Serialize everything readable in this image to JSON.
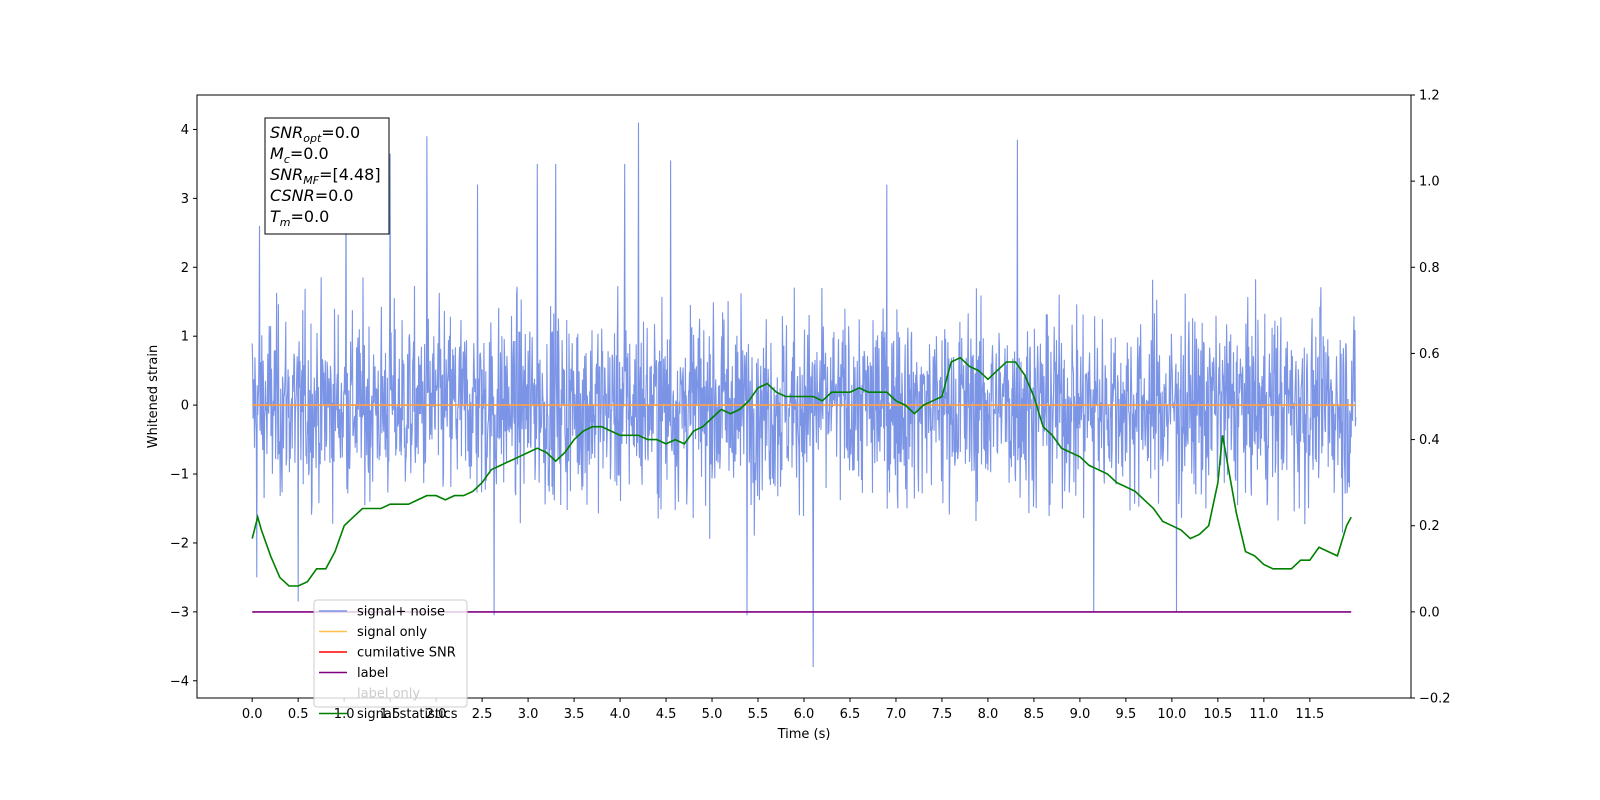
{
  "chart_data": {
    "type": "line",
    "xlabel": "Time (s)",
    "ylabel": "Whitened strain",
    "ylabel_right": "",
    "xlim": [
      -0.6,
      12.6
    ],
    "ylim": [
      -4.25,
      4.5
    ],
    "ylim_right": [
      -0.2,
      1.2
    ],
    "x_ticks": [
      0.0,
      0.5,
      1.0,
      1.5,
      2.0,
      2.5,
      3.0,
      3.5,
      4.0,
      4.5,
      5.0,
      5.5,
      6.0,
      6.5,
      7.0,
      7.5,
      8.0,
      8.5,
      9.0,
      9.5,
      10.0,
      10.5,
      11.0,
      11.5
    ],
    "x_tick_labels": [
      "0.0",
      "0.5",
      "1.0",
      "1.5",
      "2.0",
      "2.5",
      "3.0",
      "3.5",
      "4.0",
      "4.5",
      "5.0",
      "5.5",
      "6.0",
      "6.5",
      "7.0",
      "7.5",
      "8.0",
      "8.5",
      "9.0",
      "9.5",
      "10.0",
      "10.5",
      "11.0",
      "11.5"
    ],
    "y_ticks": [
      -4,
      -3,
      -2,
      -1,
      0,
      1,
      2,
      3,
      4
    ],
    "y_tick_labels": [
      "−4",
      "−3",
      "−2",
      "−1",
      "0",
      "1",
      "2",
      "3",
      "4"
    ],
    "y_right_ticks": [
      -0.2,
      0.0,
      0.2,
      0.4,
      0.6,
      0.8,
      1.0,
      1.2
    ],
    "y_right_tick_labels": [
      "−0.2",
      "0.0",
      "0.2",
      "0.4",
      "0.6",
      "0.8",
      "1.0",
      "1.2"
    ],
    "annotation_box": [
      {
        "base": "SNR",
        "sub": "opt",
        "value": "=0.0"
      },
      {
        "base": "M",
        "sub": "c",
        "value": "=0.0"
      },
      {
        "base": "SNR",
        "sub": "MF",
        "value": "=[4.48]"
      },
      {
        "base": "CSNR",
        "sub": "",
        "value": "=0.0"
      },
      {
        "base": "T",
        "sub": "m",
        "value": "=0.0"
      }
    ],
    "legend": {
      "placement": "lower-left",
      "entries": [
        {
          "label": "signal+ noise",
          "color": "#7b94e6"
        },
        {
          "label": "signal only",
          "color": "#ffc04d"
        },
        {
          "label": "cumilative SNR",
          "color": "#ff0000"
        },
        {
          "label": "label",
          "color": "#800080"
        },
        {
          "label": "label only",
          "color": "#cccccc"
        },
        {
          "label": "signal statistics",
          "color": "#008000"
        }
      ]
    },
    "series": [
      {
        "name": "signal+ noise",
        "axis": "left",
        "color": "#7b94e6",
        "style": "dense noise",
        "x_range": [
          0.0,
          12.0
        ],
        "center": 0.0,
        "typical_range": [
          -2.0,
          2.3
        ],
        "peaks": [
          {
            "x": 0.08,
            "y": 2.6
          },
          {
            "x": 1.02,
            "y": 3.1
          },
          {
            "x": 1.5,
            "y": 3.65
          },
          {
            "x": 1.9,
            "y": 3.9
          },
          {
            "x": 2.45,
            "y": 3.2
          },
          {
            "x": 3.1,
            "y": 3.5
          },
          {
            "x": 3.3,
            "y": 3.5
          },
          {
            "x": 4.05,
            "y": 3.5
          },
          {
            "x": 4.2,
            "y": 4.1
          },
          {
            "x": 4.55,
            "y": 3.55
          },
          {
            "x": 6.9,
            "y": 3.2
          },
          {
            "x": 8.32,
            "y": 3.85
          }
        ],
        "troughs": [
          {
            "x": 0.05,
            "y": -2.5
          },
          {
            "x": 0.5,
            "y": -2.85
          },
          {
            "x": 2.63,
            "y": -3.05
          },
          {
            "x": 5.38,
            "y": -3.05
          },
          {
            "x": 6.1,
            "y": -3.8
          },
          {
            "x": 9.15,
            "y": -3.0
          },
          {
            "x": 10.05,
            "y": -3.0
          }
        ]
      },
      {
        "name": "signal only",
        "axis": "left",
        "color": "#ff9f40",
        "x": [
          0.0,
          12.0
        ],
        "y": [
          0.0,
          0.0
        ]
      },
      {
        "name": "label",
        "axis": "right",
        "color": "#800080",
        "x": [
          0.0,
          11.95
        ],
        "y": [
          0.0,
          0.0
        ]
      },
      {
        "name": "signal statistics",
        "axis": "right",
        "color": "#008000",
        "x": [
          0.0,
          0.06,
          0.1,
          0.2,
          0.3,
          0.4,
          0.5,
          0.6,
          0.7,
          0.8,
          0.85,
          0.9,
          1.0,
          1.1,
          1.2,
          1.3,
          1.4,
          1.5,
          1.6,
          1.7,
          1.8,
          1.9,
          2.0,
          2.1,
          2.2,
          2.3,
          2.4,
          2.5,
          2.6,
          2.7,
          2.8,
          2.9,
          3.0,
          3.1,
          3.2,
          3.3,
          3.4,
          3.5,
          3.6,
          3.7,
          3.8,
          3.9,
          4.0,
          4.1,
          4.2,
          4.3,
          4.4,
          4.5,
          4.6,
          4.7,
          4.8,
          4.9,
          5.0,
          5.1,
          5.2,
          5.3,
          5.4,
          5.5,
          5.6,
          5.7,
          5.8,
          5.9,
          6.0,
          6.1,
          6.2,
          6.3,
          6.4,
          6.5,
          6.6,
          6.7,
          6.8,
          6.9,
          7.0,
          7.1,
          7.2,
          7.3,
          7.4,
          7.5,
          7.6,
          7.7,
          7.8,
          7.9,
          8.0,
          8.1,
          8.2,
          8.3,
          8.4,
          8.5,
          8.6,
          8.7,
          8.8,
          8.9,
          9.0,
          9.1,
          9.2,
          9.3,
          9.4,
          9.5,
          9.6,
          9.7,
          9.8,
          9.9,
          10.0,
          10.1,
          10.2,
          10.3,
          10.4,
          10.5,
          10.55,
          10.6,
          10.7,
          10.8,
          10.9,
          11.0,
          11.1,
          11.2,
          11.3,
          11.4,
          11.5,
          11.6,
          11.7,
          11.8,
          11.9,
          11.95
        ],
        "y": [
          0.17,
          0.22,
          0.19,
          0.13,
          0.08,
          0.06,
          0.06,
          0.07,
          0.1,
          0.1,
          0.12,
          0.14,
          0.2,
          0.22,
          0.24,
          0.24,
          0.24,
          0.25,
          0.25,
          0.25,
          0.26,
          0.27,
          0.27,
          0.26,
          0.27,
          0.27,
          0.28,
          0.3,
          0.33,
          0.34,
          0.35,
          0.36,
          0.37,
          0.38,
          0.37,
          0.35,
          0.37,
          0.4,
          0.42,
          0.43,
          0.43,
          0.42,
          0.41,
          0.41,
          0.41,
          0.4,
          0.4,
          0.39,
          0.4,
          0.39,
          0.42,
          0.43,
          0.45,
          0.47,
          0.46,
          0.47,
          0.49,
          0.52,
          0.53,
          0.51,
          0.5,
          0.5,
          0.5,
          0.5,
          0.49,
          0.51,
          0.51,
          0.51,
          0.52,
          0.51,
          0.51,
          0.51,
          0.49,
          0.48,
          0.46,
          0.48,
          0.49,
          0.5,
          0.58,
          0.59,
          0.57,
          0.56,
          0.54,
          0.56,
          0.58,
          0.58,
          0.55,
          0.5,
          0.43,
          0.41,
          0.38,
          0.37,
          0.36,
          0.34,
          0.33,
          0.32,
          0.3,
          0.29,
          0.28,
          0.26,
          0.24,
          0.21,
          0.2,
          0.19,
          0.17,
          0.18,
          0.2,
          0.3,
          0.41,
          0.35,
          0.23,
          0.14,
          0.13,
          0.11,
          0.1,
          0.1,
          0.1,
          0.12,
          0.12,
          0.15,
          0.14,
          0.13,
          0.2,
          0.22
        ]
      }
    ]
  }
}
